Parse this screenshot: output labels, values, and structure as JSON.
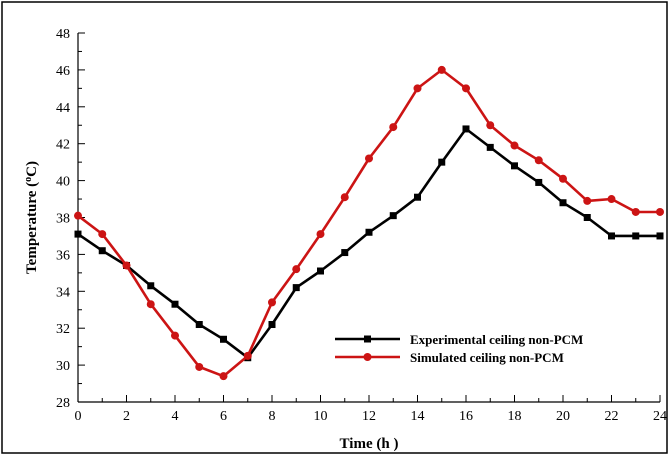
{
  "chart_data": {
    "type": "line",
    "xlabel": "Time (h )",
    "ylabel": "Temperature (°C)",
    "ylabel_parts": {
      "main": "Temperature (",
      "sup": "o",
      "unit": "C)"
    },
    "xlim": [
      0,
      24
    ],
    "ylim": [
      28,
      48
    ],
    "x_ticks": [
      0,
      2,
      4,
      6,
      8,
      10,
      12,
      14,
      16,
      18,
      20,
      22,
      24
    ],
    "y_ticks": [
      28,
      30,
      32,
      34,
      36,
      38,
      40,
      42,
      44,
      46,
      48
    ],
    "grid": false,
    "legend_position": "lower-right",
    "x": [
      0,
      1,
      2,
      3,
      4,
      5,
      6,
      7,
      8,
      9,
      10,
      11,
      12,
      13,
      14,
      15,
      16,
      17,
      18,
      19,
      20,
      21,
      22,
      23,
      24
    ],
    "series": [
      {
        "name": "Experimental ceiling non-PCM",
        "color": "#000000",
        "marker": "square",
        "values": [
          37.1,
          36.2,
          35.4,
          34.3,
          33.3,
          32.2,
          31.4,
          30.4,
          32.2,
          34.2,
          35.1,
          36.1,
          37.2,
          38.1,
          39.1,
          41.0,
          42.8,
          41.8,
          40.8,
          39.9,
          38.8,
          38.0,
          37.0,
          37.0,
          37.0
        ]
      },
      {
        "name": "Simulated ceiling non-PCM",
        "color": "#cc1414",
        "marker": "circle",
        "values": [
          38.1,
          37.1,
          35.4,
          33.3,
          31.6,
          29.9,
          29.4,
          30.5,
          33.4,
          35.2,
          37.1,
          39.1,
          41.2,
          42.9,
          45.0,
          46.0,
          45.0,
          43.0,
          41.9,
          41.1,
          40.1,
          38.9,
          39.0,
          38.3,
          38.3
        ]
      }
    ]
  }
}
